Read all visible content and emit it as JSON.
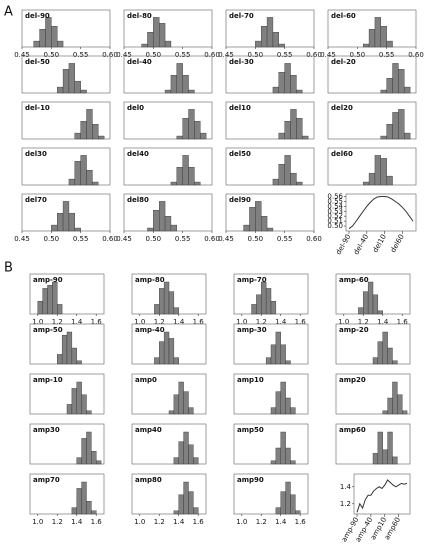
{
  "panel_labels": [
    "A",
    "B"
  ],
  "chart_data": [
    {
      "type": "histogram",
      "title": "del-90",
      "xlim": [
        0.45,
        0.6
      ],
      "xticks": [
        0.45,
        {
          "value": 0.5,
          "label": "0.50"
        },
        0.55,
        {
          "value": 0.6,
          "label": "0.60"
        }
      ],
      "bins": [
        0.47,
        0.48,
        0.49,
        0.5,
        0.51,
        0.52
      ],
      "counts": [
        2,
        6,
        10,
        7,
        2
      ],
      "color": "#808080"
    },
    {
      "type": "histogram",
      "title": "del-80",
      "xlim": [
        0.45,
        0.6
      ],
      "xticks": [
        0.45,
        {
          "value": 0.5,
          "label": "0.50"
        },
        0.55,
        {
          "value": 0.6,
          "label": "0.60"
        }
      ],
      "bins": [
        0.48,
        0.49,
        0.5,
        0.51,
        0.52,
        0.53
      ],
      "counts": [
        1,
        5,
        10,
        8,
        2
      ],
      "color": "#808080"
    },
    {
      "type": "histogram",
      "title": "del-70",
      "xlim": [
        0.45,
        0.6
      ],
      "xticks": [
        0.45,
        {
          "value": 0.5,
          "label": "0.50"
        },
        0.55,
        {
          "value": 0.6,
          "label": "0.60"
        }
      ],
      "bins": [
        0.5,
        0.51,
        0.52,
        0.53,
        0.54,
        0.55
      ],
      "counts": [
        2,
        7,
        10,
        5,
        1
      ],
      "color": "#808080"
    },
    {
      "type": "histogram",
      "title": "del-60",
      "xlim": [
        0.45,
        0.6
      ],
      "xticks": [
        0.45,
        {
          "value": 0.5,
          "label": "0.50"
        },
        0.55,
        {
          "value": 0.6,
          "label": "0.60"
        }
      ],
      "bins": [
        0.51,
        0.52,
        0.53,
        0.54,
        0.55,
        0.56
      ],
      "counts": [
        1,
        6,
        10,
        7,
        2
      ],
      "color": "#808080"
    },
    {
      "type": "histogram",
      "title": "del-50",
      "xlim": [
        0.45,
        0.6
      ],
      "bins": [
        0.51,
        0.52,
        0.53,
        0.54,
        0.55,
        0.56
      ],
      "counts": [
        2,
        8,
        10,
        4,
        1
      ],
      "color": "#808080"
    },
    {
      "type": "histogram",
      "title": "del-40",
      "xlim": [
        0.45,
        0.6
      ],
      "bins": [
        0.52,
        0.53,
        0.54,
        0.55,
        0.56,
        0.57
      ],
      "counts": [
        1,
        6,
        10,
        6,
        1
      ],
      "color": "#808080"
    },
    {
      "type": "histogram",
      "title": "del-30",
      "xlim": [
        0.45,
        0.6
      ],
      "bins": [
        0.53,
        0.54,
        0.55,
        0.56,
        0.57,
        0.58
      ],
      "counts": [
        2,
        7,
        10,
        6,
        1
      ],
      "color": "#808080"
    },
    {
      "type": "histogram",
      "title": "del-20",
      "xlim": [
        0.45,
        0.6
      ],
      "bins": [
        0.54,
        0.55,
        0.56,
        0.57,
        0.58,
        0.59
      ],
      "counts": [
        1,
        5,
        10,
        8,
        2
      ],
      "color": "#808080"
    },
    {
      "type": "histogram",
      "title": "del-10",
      "xlim": [
        0.45,
        0.6
      ],
      "bins": [
        0.54,
        0.55,
        0.56,
        0.57,
        0.58,
        0.59
      ],
      "counts": [
        2,
        6,
        10,
        5,
        1
      ],
      "color": "#808080"
    },
    {
      "type": "histogram",
      "title": "del0",
      "xlim": [
        0.45,
        0.6
      ],
      "bins": [
        0.54,
        0.55,
        0.56,
        0.57,
        0.58,
        0.59
      ],
      "counts": [
        1,
        7,
        10,
        6,
        2
      ],
      "color": "#808080"
    },
    {
      "type": "histogram",
      "title": "del10",
      "xlim": [
        0.45,
        0.6
      ],
      "bins": [
        0.54,
        0.55,
        0.56,
        0.57,
        0.58,
        0.59
      ],
      "counts": [
        2,
        6,
        10,
        7,
        1
      ],
      "color": "#808080"
    },
    {
      "type": "histogram",
      "title": "del20",
      "xlim": [
        0.45,
        0.6
      ],
      "bins": [
        0.54,
        0.55,
        0.56,
        0.57,
        0.58,
        0.59
      ],
      "counts": [
        1,
        5,
        9,
        10,
        2
      ],
      "color": "#808080"
    },
    {
      "type": "histogram",
      "title": "del30",
      "xlim": [
        0.45,
        0.6
      ],
      "bins": [
        0.53,
        0.54,
        0.55,
        0.56,
        0.57,
        0.58
      ],
      "counts": [
        2,
        8,
        10,
        5,
        1
      ],
      "color": "#808080"
    },
    {
      "type": "histogram",
      "title": "del40",
      "xlim": [
        0.45,
        0.6
      ],
      "bins": [
        0.53,
        0.54,
        0.55,
        0.56,
        0.57,
        0.58
      ],
      "counts": [
        1,
        6,
        10,
        6,
        1
      ],
      "color": "#808080"
    },
    {
      "type": "histogram",
      "title": "del50",
      "xlim": [
        0.45,
        0.6
      ],
      "bins": [
        0.53,
        0.54,
        0.55,
        0.56,
        0.57,
        0.58
      ],
      "counts": [
        2,
        7,
        10,
        4,
        1
      ],
      "color": "#808080"
    },
    {
      "type": "histogram",
      "title": "del60",
      "xlim": [
        0.45,
        0.6
      ],
      "bins": [
        0.51,
        0.52,
        0.53,
        0.54,
        0.55,
        0.56
      ],
      "counts": [
        1,
        4,
        10,
        9,
        3
      ],
      "color": "#808080"
    },
    {
      "type": "histogram",
      "title": "del70",
      "xlim": [
        0.45,
        0.6
      ],
      "xticks": [
        0.45,
        {
          "value": 0.5,
          "label": "0.50"
        },
        0.55,
        {
          "value": 0.6,
          "label": "0.60"
        }
      ],
      "bins": [
        0.5,
        0.51,
        0.52,
        0.53,
        0.54,
        0.55
      ],
      "counts": [
        2,
        6,
        10,
        6,
        1
      ],
      "color": "#808080"
    },
    {
      "type": "histogram",
      "title": "del80",
      "xlim": [
        0.45,
        0.6
      ],
      "xticks": [
        0.45,
        {
          "value": 0.5,
          "label": "0.50"
        },
        0.55,
        {
          "value": 0.6,
          "label": "0.60"
        }
      ],
      "bins": [
        0.49,
        0.5,
        0.51,
        0.52,
        0.53,
        0.54
      ],
      "counts": [
        1,
        7,
        10,
        5,
        2
      ],
      "color": "#808080"
    },
    {
      "type": "histogram",
      "title": "del90",
      "xlim": [
        0.45,
        0.6
      ],
      "xticks": [
        0.45,
        {
          "value": 0.5,
          "label": "0.50"
        },
        0.55,
        {
          "value": 0.6,
          "label": "0.60"
        }
      ],
      "bins": [
        0.48,
        0.49,
        0.5,
        0.51,
        0.52,
        0.53
      ],
      "counts": [
        2,
        8,
        10,
        5,
        1
      ],
      "color": "#808080"
    },
    {
      "type": "line",
      "categories": [
        "del-90",
        null,
        null,
        null,
        null,
        "del-40",
        null,
        null,
        null,
        null,
        "del10",
        null,
        null,
        null,
        null,
        "del60",
        null,
        null,
        null
      ],
      "values": [
        0.495,
        0.5,
        0.51,
        0.52,
        0.53,
        0.54,
        0.548,
        0.555,
        0.559,
        0.56,
        0.56,
        0.559,
        0.555,
        0.55,
        0.545,
        0.538,
        0.53,
        0.52,
        0.51
      ],
      "ylim": [
        0.49,
        0.565
      ],
      "yticks": [
        {
          "value": 0.5,
          "label": "0.50"
        },
        0.51,
        0.52,
        0.53,
        0.54,
        0.55,
        0.56
      ],
      "color": "#333333"
    },
    {
      "type": "histogram",
      "title": "amp-90",
      "xlim": [
        0.92,
        1.68
      ],
      "xticks": [
        {
          "value": 1,
          "label": "1.0"
        },
        1.2,
        1.4,
        1.6
      ],
      "bins": [
        1.0,
        1.05,
        1.1,
        1.15,
        1.2,
        1.25
      ],
      "counts": [
        4,
        8,
        9,
        10,
        3
      ],
      "color": "#808080"
    },
    {
      "type": "histogram",
      "title": "amp-80",
      "xlim": [
        0.92,
        1.68
      ],
      "xticks": [
        {
          "value": 1,
          "label": "1.0"
        },
        1.2,
        1.4,
        1.6
      ],
      "bins": [
        1.15,
        1.2,
        1.25,
        1.3,
        1.35,
        1.4
      ],
      "counts": [
        3,
        8,
        10,
        7,
        2
      ],
      "color": "#808080"
    },
    {
      "type": "histogram",
      "title": "amp-70",
      "xlim": [
        0.92,
        1.68
      ],
      "xticks": [
        {
          "value": 1,
          "label": "1.0"
        },
        1.2,
        1.4,
        1.6
      ],
      "bins": [
        1.1,
        1.15,
        1.2,
        1.25,
        1.3,
        1.35
      ],
      "counts": [
        3,
        6,
        10,
        8,
        4
      ],
      "color": "#808080"
    },
    {
      "type": "histogram",
      "title": "amp-60",
      "xlim": [
        0.92,
        1.68
      ],
      "xticks": [
        {
          "value": 1,
          "label": "1.0"
        },
        1.2,
        1.4,
        1.6
      ],
      "bins": [
        1.15,
        1.2,
        1.25,
        1.3,
        1.35,
        1.4
      ],
      "counts": [
        2,
        7,
        10,
        6,
        1
      ],
      "color": "#808080"
    },
    {
      "type": "histogram",
      "title": "amp-50",
      "xlim": [
        0.92,
        1.68
      ],
      "bins": [
        1.2,
        1.25,
        1.3,
        1.35,
        1.4,
        1.45
      ],
      "counts": [
        3,
        9,
        10,
        5,
        1
      ],
      "color": "#808080"
    },
    {
      "type": "histogram",
      "title": "amp-40",
      "xlim": [
        0.92,
        1.68
      ],
      "bins": [
        1.15,
        1.2,
        1.25,
        1.3,
        1.35,
        1.4
      ],
      "counts": [
        2,
        7,
        10,
        8,
        2
      ],
      "color": "#808080"
    },
    {
      "type": "histogram",
      "title": "amp-30",
      "xlim": [
        0.92,
        1.68
      ],
      "bins": [
        1.25,
        1.3,
        1.35,
        1.4,
        1.45,
        1.5
      ],
      "counts": [
        2,
        6,
        10,
        6,
        1
      ],
      "color": "#808080"
    },
    {
      "type": "histogram",
      "title": "amp-20",
      "xlim": [
        0.92,
        1.68
      ],
      "bins": [
        1.3,
        1.35,
        1.4,
        1.45,
        1.5,
        1.55
      ],
      "counts": [
        2,
        7,
        10,
        5,
        1
      ],
      "color": "#808080"
    },
    {
      "type": "histogram",
      "title": "amp-10",
      "xlim": [
        0.92,
        1.68
      ],
      "bins": [
        1.3,
        1.35,
        1.4,
        1.45,
        1.5,
        1.55
      ],
      "counts": [
        3,
        8,
        10,
        6,
        1
      ],
      "color": "#808080"
    },
    {
      "type": "histogram",
      "title": "amp0",
      "xlim": [
        0.92,
        1.68
      ],
      "bins": [
        1.3,
        1.35,
        1.4,
        1.45,
        1.5,
        1.55
      ],
      "counts": [
        1,
        6,
        10,
        7,
        2
      ],
      "color": "#808080"
    },
    {
      "type": "histogram",
      "title": "amp10",
      "xlim": [
        0.92,
        1.68
      ],
      "bins": [
        1.3,
        1.35,
        1.4,
        1.45,
        1.5,
        1.55
      ],
      "counts": [
        2,
        7,
        10,
        5,
        2
      ],
      "color": "#808080"
    },
    {
      "type": "histogram",
      "title": "amp20",
      "xlim": [
        0.92,
        1.68
      ],
      "bins": [
        1.4,
        1.45,
        1.5,
        1.55,
        1.6,
        1.65
      ],
      "counts": [
        1,
        5,
        10,
        6,
        1
      ],
      "color": "#808080"
    },
    {
      "type": "histogram",
      "title": "amp30",
      "xlim": [
        0.92,
        1.68
      ],
      "bins": [
        1.4,
        1.45,
        1.5,
        1.55,
        1.6,
        1.65
      ],
      "counts": [
        2,
        8,
        10,
        4,
        1
      ],
      "color": "#808080"
    },
    {
      "type": "histogram",
      "title": "amp40",
      "xlim": [
        0.92,
        1.68
      ],
      "bins": [
        1.35,
        1.4,
        1.45,
        1.5,
        1.55,
        1.6
      ],
      "counts": [
        2,
        7,
        10,
        6,
        2
      ],
      "color": "#808080"
    },
    {
      "type": "histogram",
      "title": "amp50",
      "xlim": [
        0.92,
        1.68
      ],
      "bins": [
        1.3,
        1.35,
        1.4,
        1.45,
        1.5,
        1.55
      ],
      "counts": [
        1,
        5,
        10,
        5,
        1
      ],
      "color": "#808080"
    },
    {
      "type": "histogram",
      "title": "amp60",
      "xlim": [
        0.92,
        1.68
      ],
      "bins": [
        1.3,
        1.35,
        1.4,
        1.45,
        1.5,
        1.55
      ],
      "counts": [
        3,
        9,
        4,
        9,
        2
      ],
      "color": "#808080"
    },
    {
      "type": "histogram",
      "title": "amp70",
      "xlim": [
        0.92,
        1.68
      ],
      "xticks": [
        {
          "value": 1,
          "label": "1.0"
        },
        1.2,
        1.4,
        1.6
      ],
      "bins": [
        1.35,
        1.4,
        1.45,
        1.5,
        1.55,
        1.6
      ],
      "counts": [
        2,
        8,
        10,
        4,
        1
      ],
      "color": "#808080"
    },
    {
      "type": "histogram",
      "title": "amp80",
      "xlim": [
        0.92,
        1.68
      ],
      "xticks": [
        {
          "value": 1,
          "label": "1.0"
        },
        1.2,
        1.4,
        1.6
      ],
      "bins": [
        1.35,
        1.4,
        1.45,
        1.5,
        1.55,
        1.6
      ],
      "counts": [
        1,
        6,
        10,
        7,
        2
      ],
      "color": "#808080"
    },
    {
      "type": "histogram",
      "title": "amp90",
      "xlim": [
        0.92,
        1.68
      ],
      "xticks": [
        {
          "value": 1,
          "label": "1.0"
        },
        1.2,
        1.4,
        1.6
      ],
      "bins": [
        1.35,
        1.4,
        1.45,
        1.5,
        1.55,
        1.6
      ],
      "counts": [
        2,
        7,
        10,
        6,
        1
      ],
      "color": "#808080"
    },
    {
      "type": "line",
      "categories": [
        "amp-90",
        null,
        null,
        null,
        null,
        "amp-40",
        null,
        null,
        null,
        null,
        "amp10",
        null,
        null,
        null,
        null,
        "amp60",
        null,
        null,
        null
      ],
      "values": [
        1.1,
        1.2,
        1.15,
        1.25,
        1.3,
        1.3,
        1.35,
        1.38,
        1.4,
        1.38,
        1.42,
        1.48,
        1.45,
        1.42,
        1.4,
        1.42,
        1.44,
        1.43,
        1.44
      ],
      "ylim": [
        1.08,
        1.55
      ],
      "yticks": [
        1.2,
        1.4
      ],
      "color": "#333333"
    }
  ]
}
